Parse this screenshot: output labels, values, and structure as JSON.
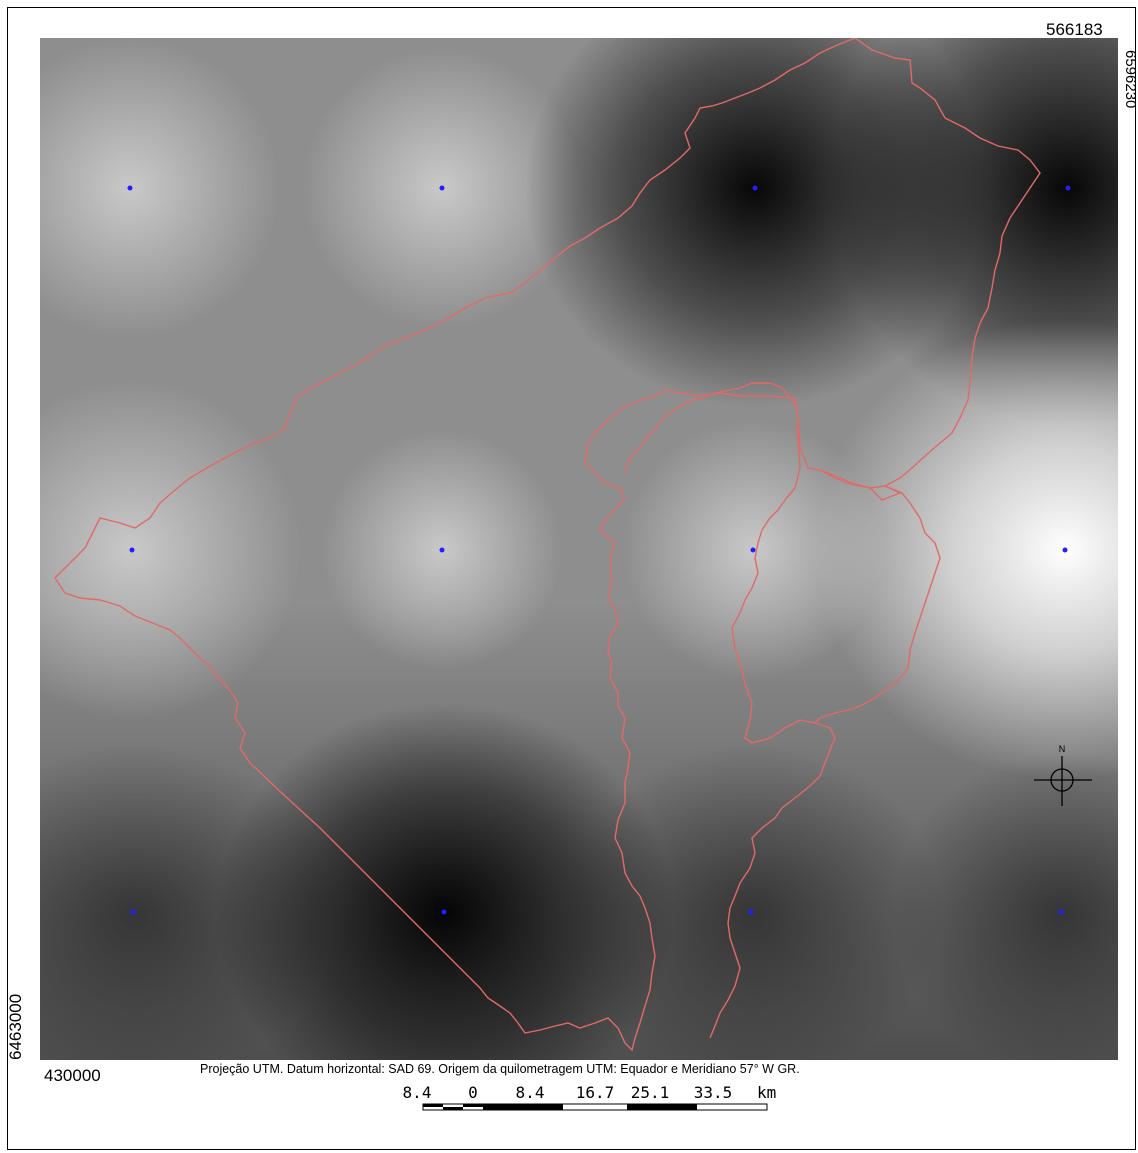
{
  "coords": {
    "top_right": "566183",
    "right_vertical": "6596230",
    "left_vertical": "6463000",
    "bottom_left": "430000"
  },
  "projection_note": "Projeção UTM. Datum horizontal: SAD 69. Origem da quilometragem UTM: Equador e Meridiano 57° W GR.",
  "scalebar": {
    "labels": [
      "8.4",
      "0",
      "8.4",
      "16.7",
      "25.1",
      "33.5"
    ],
    "unit": "km"
  },
  "north_label": "N",
  "colors": {
    "boundary": "#e06a6a",
    "station": "#1f1fff",
    "frame": "#000000"
  }
}
